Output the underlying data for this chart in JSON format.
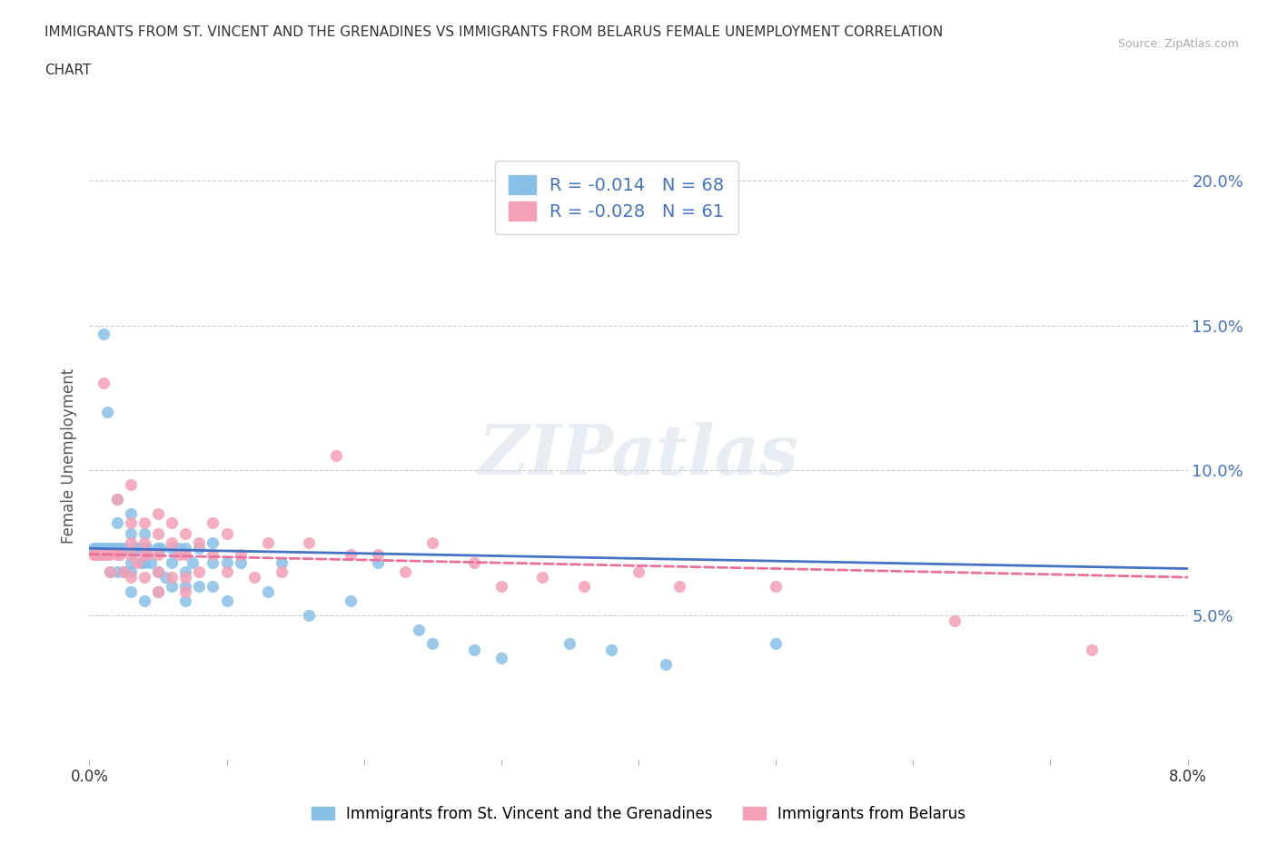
{
  "title_line1": "IMMIGRANTS FROM ST. VINCENT AND THE GRENADINES VS IMMIGRANTS FROM BELARUS FEMALE UNEMPLOYMENT CORRELATION",
  "title_line2": "CHART",
  "source": "Source: ZipAtlas.com",
  "ylabel": "Female Unemployment",
  "watermark": "ZIPatlas",
  "series1_label": "Immigrants from St. Vincent and the Grenadines",
  "series2_label": "Immigrants from Belarus",
  "series1_color": "#88c0e8",
  "series2_color": "#f4a0b5",
  "series1_R": -0.014,
  "series1_N": 68,
  "series2_R": -0.028,
  "series2_N": 61,
  "xlim": [
    0.0,
    0.08
  ],
  "ylim": [
    0.0,
    0.21
  ],
  "yticks": [
    0.05,
    0.1,
    0.15,
    0.2
  ],
  "ytick_labels": [
    "5.0%",
    "10.0%",
    "15.0%",
    "20.0%"
  ],
  "trendline1_color": "#4472c4",
  "trendline2_color": "#e8709a",
  "trendline1_start_y": 0.073,
  "trendline1_end_y": 0.066,
  "trendline2_start_y": 0.071,
  "trendline2_end_y": 0.063,
  "grid_color": "#cccccc",
  "background_color": "#ffffff",
  "series1_x": [
    0.0003,
    0.0005,
    0.0007,
    0.001,
    0.001,
    0.0012,
    0.0013,
    0.0015,
    0.0015,
    0.0017,
    0.002,
    0.002,
    0.002,
    0.002,
    0.0022,
    0.0025,
    0.0025,
    0.003,
    0.003,
    0.003,
    0.003,
    0.003,
    0.003,
    0.0032,
    0.0035,
    0.0038,
    0.004,
    0.004,
    0.004,
    0.004,
    0.0042,
    0.0045,
    0.005,
    0.005,
    0.005,
    0.005,
    0.0052,
    0.0055,
    0.006,
    0.006,
    0.006,
    0.0065,
    0.007,
    0.007,
    0.007,
    0.007,
    0.0075,
    0.008,
    0.008,
    0.009,
    0.009,
    0.009,
    0.01,
    0.01,
    0.011,
    0.013,
    0.014,
    0.016,
    0.019,
    0.021,
    0.024,
    0.025,
    0.028,
    0.03,
    0.035,
    0.038,
    0.042,
    0.05
  ],
  "series1_y": [
    0.073,
    0.073,
    0.073,
    0.147,
    0.073,
    0.073,
    0.12,
    0.073,
    0.065,
    0.073,
    0.09,
    0.082,
    0.073,
    0.065,
    0.073,
    0.073,
    0.065,
    0.085,
    0.078,
    0.073,
    0.068,
    0.065,
    0.058,
    0.073,
    0.073,
    0.068,
    0.078,
    0.073,
    0.068,
    0.055,
    0.073,
    0.068,
    0.073,
    0.073,
    0.065,
    0.058,
    0.073,
    0.063,
    0.073,
    0.068,
    0.06,
    0.073,
    0.073,
    0.065,
    0.06,
    0.055,
    0.068,
    0.073,
    0.06,
    0.075,
    0.068,
    0.06,
    0.068,
    0.055,
    0.068,
    0.058,
    0.068,
    0.05,
    0.055,
    0.068,
    0.045,
    0.04,
    0.038,
    0.035,
    0.04,
    0.038,
    0.033,
    0.04
  ],
  "series2_x": [
    0.0003,
    0.0005,
    0.0007,
    0.001,
    0.001,
    0.0012,
    0.0015,
    0.0015,
    0.002,
    0.002,
    0.0022,
    0.0025,
    0.003,
    0.003,
    0.003,
    0.003,
    0.003,
    0.0035,
    0.004,
    0.004,
    0.004,
    0.004,
    0.0042,
    0.005,
    0.005,
    0.005,
    0.005,
    0.005,
    0.006,
    0.006,
    0.006,
    0.0065,
    0.007,
    0.007,
    0.007,
    0.007,
    0.008,
    0.008,
    0.009,
    0.009,
    0.01,
    0.01,
    0.011,
    0.012,
    0.013,
    0.014,
    0.016,
    0.018,
    0.019,
    0.021,
    0.023,
    0.025,
    0.028,
    0.03,
    0.033,
    0.036,
    0.04,
    0.043,
    0.05,
    0.063,
    0.073
  ],
  "series2_y": [
    0.071,
    0.071,
    0.071,
    0.13,
    0.071,
    0.071,
    0.071,
    0.065,
    0.09,
    0.071,
    0.071,
    0.065,
    0.095,
    0.082,
    0.075,
    0.071,
    0.063,
    0.068,
    0.082,
    0.075,
    0.071,
    0.063,
    0.071,
    0.085,
    0.078,
    0.071,
    0.065,
    0.058,
    0.082,
    0.075,
    0.063,
    0.071,
    0.078,
    0.071,
    0.063,
    0.058,
    0.075,
    0.065,
    0.082,
    0.071,
    0.078,
    0.065,
    0.071,
    0.063,
    0.075,
    0.065,
    0.075,
    0.105,
    0.071,
    0.071,
    0.065,
    0.075,
    0.068,
    0.06,
    0.063,
    0.06,
    0.065,
    0.06,
    0.06,
    0.048,
    0.038
  ]
}
